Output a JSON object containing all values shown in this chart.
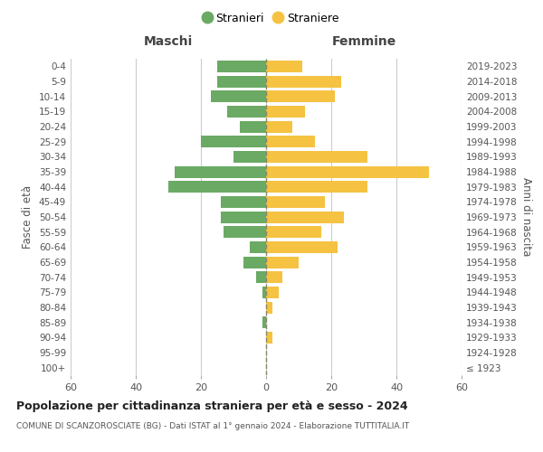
{
  "age_groups": [
    "100+",
    "95-99",
    "90-94",
    "85-89",
    "80-84",
    "75-79",
    "70-74",
    "65-69",
    "60-64",
    "55-59",
    "50-54",
    "45-49",
    "40-44",
    "35-39",
    "30-34",
    "25-29",
    "20-24",
    "15-19",
    "10-14",
    "5-9",
    "0-4"
  ],
  "birth_years": [
    "≤ 1923",
    "1924-1928",
    "1929-1933",
    "1934-1938",
    "1939-1943",
    "1944-1948",
    "1949-1953",
    "1954-1958",
    "1959-1963",
    "1964-1968",
    "1969-1973",
    "1974-1978",
    "1979-1983",
    "1984-1988",
    "1989-1993",
    "1994-1998",
    "1999-2003",
    "2004-2008",
    "2009-2013",
    "2014-2018",
    "2019-2023"
  ],
  "males": [
    0,
    0,
    0,
    1,
    0,
    1,
    3,
    7,
    5,
    13,
    14,
    14,
    30,
    28,
    10,
    20,
    8,
    12,
    17,
    15,
    15
  ],
  "females": [
    0,
    0,
    2,
    0,
    2,
    4,
    5,
    10,
    22,
    17,
    24,
    18,
    31,
    50,
    31,
    15,
    8,
    12,
    21,
    23,
    11
  ],
  "male_color": "#6aaa64",
  "female_color": "#f5c242",
  "grid_color": "#cccccc",
  "dashed_line_color": "#888866",
  "title": "Popolazione per cittadinanza straniera per età e sesso - 2024",
  "subtitle": "COMUNE DI SCANZOROSCIATE (BG) - Dati ISTAT al 1° gennaio 2024 - Elaborazione TUTTITALIA.IT",
  "xlabel_left": "Maschi",
  "xlabel_right": "Femmine",
  "ylabel_left": "Fasce di età",
  "ylabel_right": "Anni di nascita",
  "legend_males": "Stranieri",
  "legend_females": "Straniere",
  "xlim": 60,
  "background_color": "#ffffff"
}
